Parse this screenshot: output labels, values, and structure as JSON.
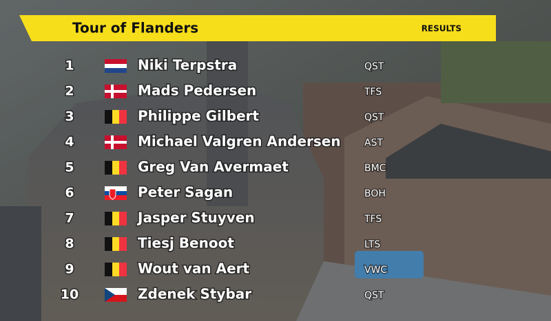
{
  "header": {
    "title": "Tour of Flanders",
    "label": "RESULTS"
  },
  "table": {
    "rows": [
      [
        1,
        "Niki Terpstra",
        "QST"
      ],
      [
        2,
        "Mads Pedersen",
        "TFS"
      ],
      [
        3,
        "Philippe Gilbert",
        "QST"
      ],
      [
        4,
        "Michael Valgren Andersen",
        "AST"
      ],
      [
        5,
        "Greg Van Avermaet",
        "BMC"
      ],
      [
        6,
        "Peter Sagan",
        "BOH"
      ],
      [
        7,
        "Jasper Stuyven",
        "TFS"
      ],
      [
        8,
        "Tiesj Benoot",
        "LTS"
      ],
      [
        9,
        "Wout van Aert",
        "VWC"
      ],
      [
        10,
        "Zdenek Stybar",
        "QST"
      ]
    ]
  }
}
